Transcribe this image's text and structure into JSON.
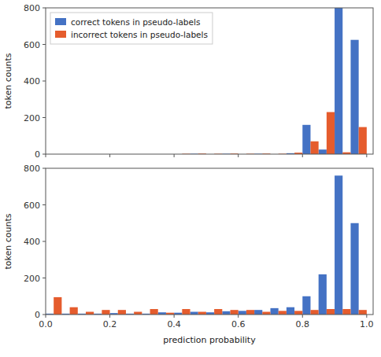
{
  "chart_data": [
    {
      "type": "bar",
      "ylabel": "token counts",
      "x": [
        0.0,
        0.05,
        0.1,
        0.15,
        0.2,
        0.25,
        0.3,
        0.35,
        0.4,
        0.45,
        0.5,
        0.55,
        0.6,
        0.65,
        0.7,
        0.75,
        0.8,
        0.85,
        0.9,
        0.95
      ],
      "series": [
        {
          "name": "correct tokens in pseudo-labels",
          "color": "#4472C4",
          "values": [
            0,
            0,
            0,
            0,
            0,
            0,
            0,
            0,
            0,
            2,
            0,
            2,
            0,
            2,
            0,
            5,
            160,
            25,
            800,
            625
          ]
        },
        {
          "name": "incorrect tokens in pseudo-labels",
          "color": "#E55C2D",
          "values": [
            0,
            0,
            0,
            0,
            0,
            0,
            0,
            0,
            2,
            3,
            2,
            3,
            2,
            3,
            2,
            8,
            70,
            230,
            10,
            148
          ]
        }
      ],
      "xlim": [
        0.0,
        1.02
      ],
      "xticks": [
        0,
        0.2,
        0.4,
        0.6,
        0.8,
        1
      ],
      "ylim": [
        0,
        800
      ],
      "yticks": [
        0,
        200,
        400,
        600,
        800
      ],
      "tick_labels": "y",
      "legend": "upper-left"
    },
    {
      "type": "bar",
      "ylabel": "token counts",
      "xlabel": "prediction probability",
      "x": [
        0.0,
        0.05,
        0.1,
        0.15,
        0.2,
        0.25,
        0.3,
        0.35,
        0.4,
        0.45,
        0.5,
        0.55,
        0.6,
        0.65,
        0.7,
        0.75,
        0.8,
        0.85,
        0.9,
        0.95
      ],
      "series": [
        {
          "color": "#4472C4",
          "values": [
            5,
            5,
            5,
            5,
            8,
            5,
            5,
            12,
            10,
            15,
            12,
            18,
            20,
            25,
            35,
            40,
            100,
            220,
            760,
            500
          ]
        },
        {
          "color": "#E55C2D",
          "values": [
            95,
            40,
            15,
            25,
            25,
            15,
            30,
            10,
            30,
            15,
            30,
            25,
            25,
            15,
            20,
            20,
            25,
            30,
            30,
            25
          ]
        }
      ],
      "xlim": [
        0.0,
        1.02
      ],
      "xticks": [
        {
          "value": 0,
          "label": "0.0"
        },
        0.2,
        0.4,
        0.6,
        0.8,
        {
          "value": 1,
          "label": "1.0"
        }
      ],
      "ylim": [
        0,
        800
      ],
      "yticks": [
        0,
        200,
        400,
        600,
        800
      ]
    }
  ]
}
